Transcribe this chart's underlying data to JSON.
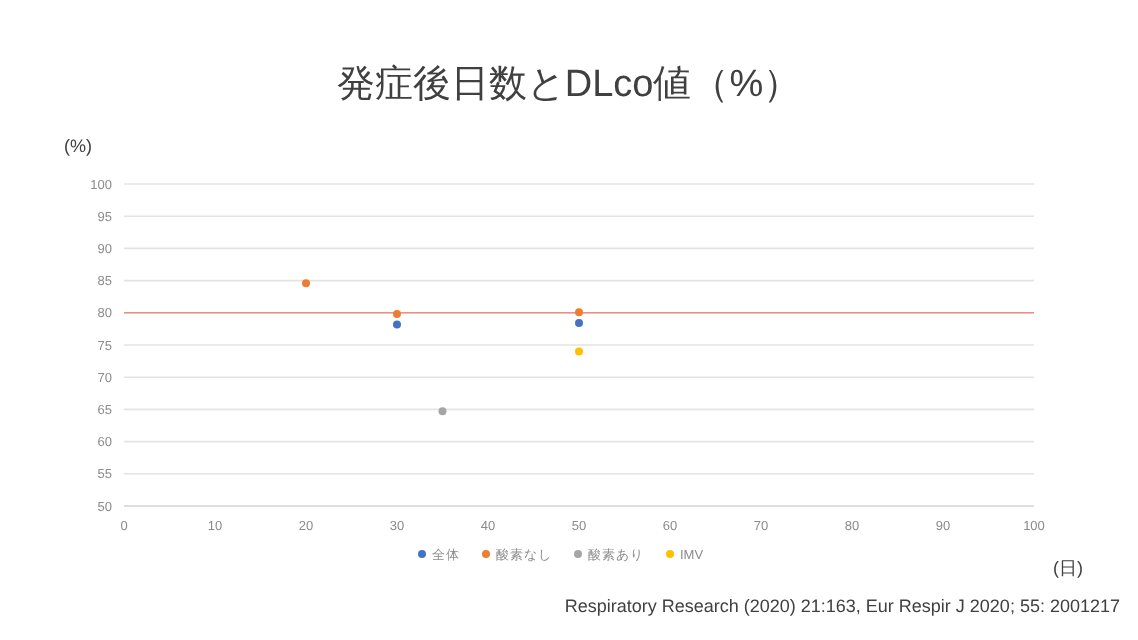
{
  "chart_data": {
    "type": "scatter",
    "title": "発症後日数とDLco値（%）",
    "xlabel": "(日)",
    "ylabel": "(%)",
    "xlim": [
      0,
      100
    ],
    "xticks": [
      0,
      10,
      20,
      30,
      40,
      50,
      60,
      70,
      80,
      90,
      100
    ],
    "ylim": [
      50,
      100
    ],
    "yticks": [
      50,
      55,
      60,
      65,
      70,
      75,
      80,
      85,
      90,
      95,
      100
    ],
    "grid": "y",
    "legend": "bottom",
    "marker": "circle",
    "ref_lines": [
      {
        "axis": "y",
        "value": 80,
        "color": "#f08c84"
      }
    ],
    "annotations": [
      "Respiratory Research (2020) 21:163, Eur Respir J 2020; 55: 2001217"
    ],
    "series": [
      {
        "name": "全体",
        "color": "#4472c4",
        "x": [
          30,
          50
        ],
        "values": [
          78.2,
          78.4
        ]
      },
      {
        "name": "酸素なし",
        "color": "#ed7d31",
        "x": [
          20,
          30,
          50
        ],
        "values": [
          84.6,
          79.8,
          80.1
        ]
      },
      {
        "name": "酸素あり",
        "color": "#a5a5a5",
        "x": [
          35
        ],
        "values": [
          64.7
        ]
      },
      {
        "name": "IMV",
        "color": "#ffc000",
        "x": [
          50
        ],
        "values": [
          74
        ]
      }
    ]
  }
}
